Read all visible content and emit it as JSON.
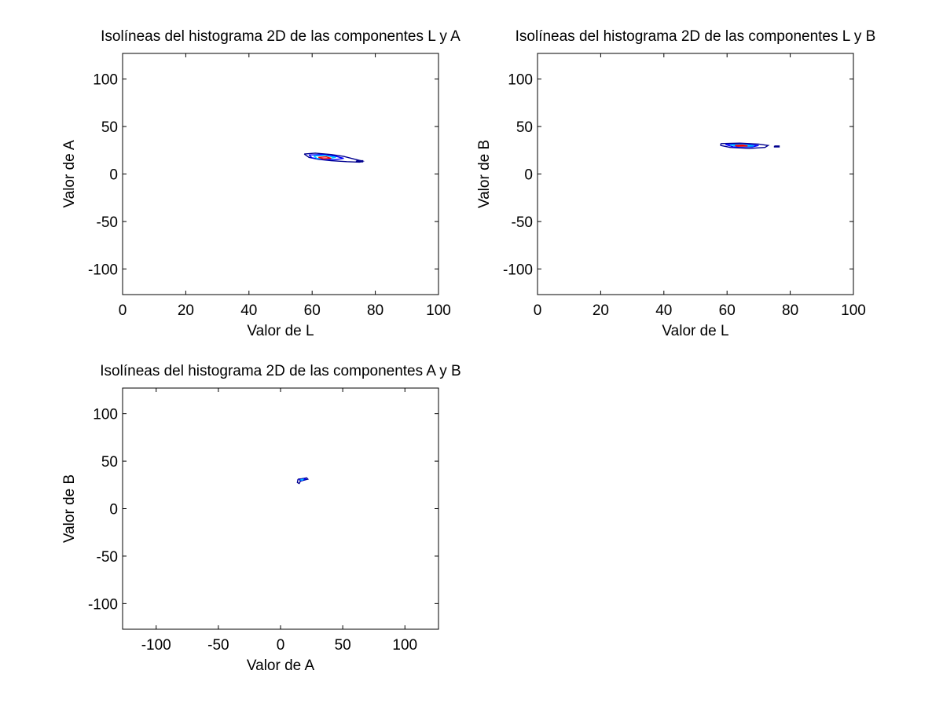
{
  "chart_data": [
    {
      "type": "contour",
      "title": "Isolíneas del histograma 2D de las componentes L y A",
      "xlabel": "Valor de L",
      "ylabel": "Valor de A",
      "xlim": [
        0,
        100
      ],
      "ylim": [
        -127,
        127
      ],
      "xticks": [
        0,
        20,
        40,
        60,
        80,
        100
      ],
      "yticks": [
        -100,
        -50,
        0,
        50,
        100
      ],
      "grid": false,
      "legend": "none",
      "contours": [
        {
          "level": "low",
          "color": "#00008f",
          "points": [
            [
              57.5,
              21
            ],
            [
              61,
              22
            ],
            [
              66,
              20.5
            ],
            [
              70,
              18.5
            ],
            [
              73,
              16
            ],
            [
              76,
              13.5
            ],
            [
              75,
              12.5
            ],
            [
              71,
              13
            ],
            [
              66,
              14
            ],
            [
              62,
              15.5
            ],
            [
              59,
              17.5
            ],
            [
              57.5,
              21
            ]
          ]
        },
        {
          "level": "low-2",
          "color": "#0000ff",
          "points": [
            [
              59,
              20
            ],
            [
              63,
              20.5
            ],
            [
              67,
              19
            ],
            [
              70,
              16.5
            ],
            [
              67,
              15
            ],
            [
              63,
              15.5
            ],
            [
              60,
              17
            ],
            [
              59,
              20
            ]
          ]
        },
        {
          "level": "mid",
          "color": "#00c8ff",
          "points": [
            [
              60.5,
              19
            ],
            [
              64,
              19.5
            ],
            [
              67.5,
              17.5
            ],
            [
              65,
              16
            ],
            [
              61.5,
              16.5
            ],
            [
              60.5,
              19
            ]
          ]
        },
        {
          "level": "high",
          "color": "#ff0000",
          "points": [
            [
              62,
              17.5
            ],
            [
              64.5,
              18
            ],
            [
              66,
              16.5
            ],
            [
              63.5,
              16
            ],
            [
              62,
              17.5
            ]
          ]
        },
        {
          "level": "tail",
          "color": "#00008f",
          "points": [
            [
              74,
              14
            ],
            [
              76,
              14
            ],
            [
              76,
              12.8
            ],
            [
              74,
              12.8
            ],
            [
              74,
              14
            ]
          ]
        }
      ]
    },
    {
      "type": "contour",
      "title": "Isolíneas del histograma 2D de las componentes L y B",
      "xlabel": "Valor de L",
      "ylabel": "Valor de B",
      "xlim": [
        0,
        100
      ],
      "ylim": [
        -127,
        127
      ],
      "xticks": [
        0,
        20,
        40,
        60,
        80,
        100
      ],
      "yticks": [
        -100,
        -50,
        0,
        50,
        100
      ],
      "grid": false,
      "legend": "none",
      "contours": [
        {
          "level": "low",
          "color": "#00008f",
          "points": [
            [
              58,
              32
            ],
            [
              64,
              32.5
            ],
            [
              70,
              31.5
            ],
            [
              73,
              30
            ],
            [
              72,
              28
            ],
            [
              67,
              27
            ],
            [
              61,
              28
            ],
            [
              58,
              30
            ],
            [
              58,
              32
            ]
          ]
        },
        {
          "level": "low-2",
          "color": "#0000ff",
          "points": [
            [
              59.5,
              31
            ],
            [
              65,
              31.5
            ],
            [
              70,
              30
            ],
            [
              68,
              28.5
            ],
            [
              62,
              28.5
            ],
            [
              59.5,
              31
            ]
          ]
        },
        {
          "level": "mid",
          "color": "#00c8ff",
          "points": [
            [
              61,
              30.5
            ],
            [
              65,
              31
            ],
            [
              68.5,
              29.5
            ],
            [
              64,
              29
            ],
            [
              61,
              30.5
            ]
          ]
        },
        {
          "level": "high",
          "color": "#ff0000",
          "points": [
            [
              62.5,
              30
            ],
            [
              65,
              30.5
            ],
            [
              66.5,
              29.5
            ],
            [
              63.5,
              29.2
            ],
            [
              62.5,
              30
            ]
          ]
        },
        {
          "level": "tail",
          "color": "#00008f",
          "points": [
            [
              75,
              29.5
            ],
            [
              76.5,
              29.5
            ],
            [
              76.5,
              28.5
            ],
            [
              75,
              28.5
            ],
            [
              75,
              29.5
            ]
          ]
        }
      ]
    },
    {
      "type": "contour",
      "title": "Isolíneas del histograma 2D de las componentes A y B",
      "xlabel": "Valor de A",
      "ylabel": "Valor de B",
      "xlim": [
        -127,
        127
      ],
      "ylim": [
        -127,
        127
      ],
      "xticks": [
        -100,
        -50,
        0,
        50,
        100
      ],
      "yticks": [
        -100,
        -50,
        0,
        50,
        100
      ],
      "grid": false,
      "legend": "none",
      "contours": [
        {
          "level": "low",
          "color": "#00008f",
          "points": [
            [
              14,
              31
            ],
            [
              17,
              31.5
            ],
            [
              21,
              32.5
            ],
            [
              22,
              31
            ],
            [
              19,
              30
            ],
            [
              16,
              29
            ],
            [
              15,
              26.5
            ],
            [
              13.5,
              27.5
            ],
            [
              14,
              31
            ]
          ]
        },
        {
          "level": "low-2",
          "color": "#0000ff",
          "points": [
            [
              15,
              30.5
            ],
            [
              18,
              31
            ],
            [
              20.5,
              31.5
            ],
            [
              18.5,
              30.2
            ],
            [
              16.2,
              29.5
            ],
            [
              15,
              30.5
            ]
          ]
        },
        {
          "level": "mid",
          "color": "#00c8ff",
          "points": [
            [
              16,
              30.4
            ],
            [
              18,
              30.8
            ],
            [
              17.5,
              30
            ],
            [
              16,
              30.4
            ]
          ]
        }
      ]
    }
  ]
}
